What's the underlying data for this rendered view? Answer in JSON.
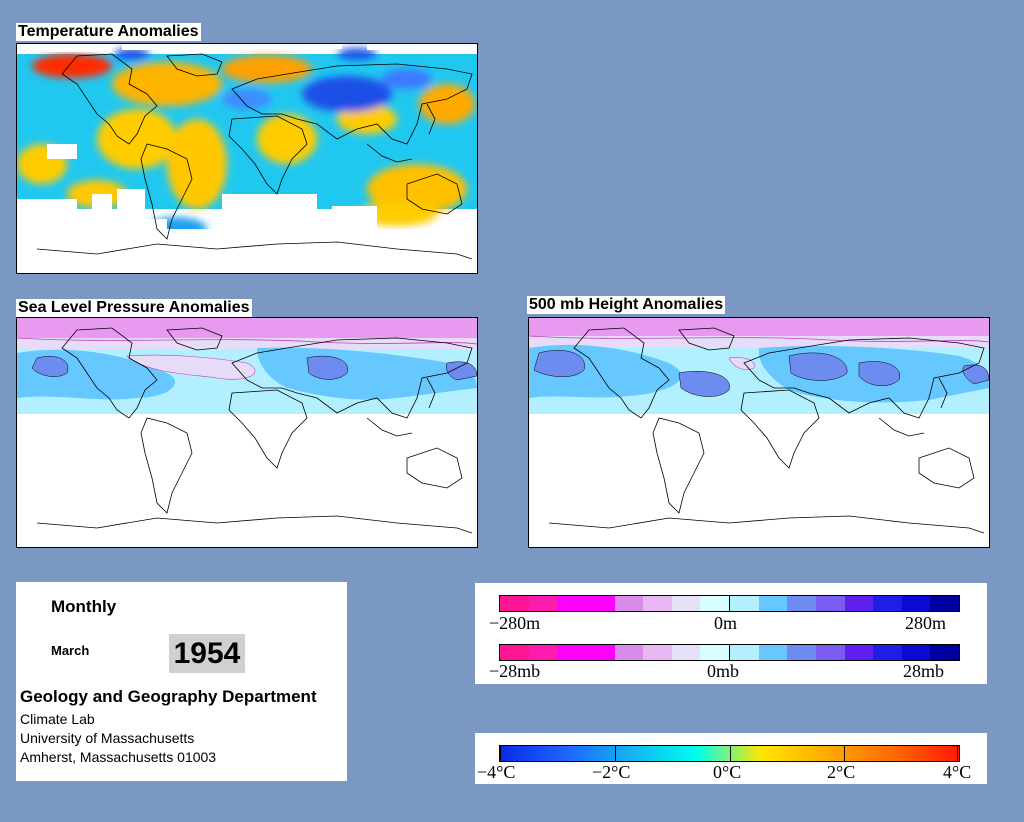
{
  "maps": {
    "temperature": {
      "title": "Temperature Anomalies"
    },
    "slp": {
      "title": "Sea Level Pressure Anomalies"
    },
    "height500": {
      "title": "500 mb Height Anomalies"
    }
  },
  "info": {
    "period": "Monthly",
    "month": "March",
    "year": "1954",
    "department": "Geology and Geography Department",
    "address_lines": [
      "Climate Lab",
      "University of Massachusetts",
      "Amherst, Massachusetts 01003"
    ]
  },
  "legends": {
    "height": {
      "ticks": [
        "−280m",
        "0m",
        "280m"
      ],
      "colors": [
        "#ff1493",
        "#ff1ab0",
        "#ff00ff",
        "#ff00ff",
        "#d98ae8",
        "#e8b6f0",
        "#e6e0f8",
        "#d8ffff",
        "#b3f0ff",
        "#66c8ff",
        "#6e8cf0",
        "#7a5cf0",
        "#6020f0",
        "#1e1ee6",
        "#0a0ad2",
        "#0000a0"
      ]
    },
    "pressure": {
      "ticks": [
        "−28mb",
        "0mb",
        "28mb"
      ],
      "colors": [
        "#ff1493",
        "#ff1ab0",
        "#ff00ff",
        "#ff00ff",
        "#d98ae8",
        "#e8b6f0",
        "#e6e0f8",
        "#d8ffff",
        "#b3f0ff",
        "#66c8ff",
        "#6e8cf0",
        "#7a5cf0",
        "#6020f0",
        "#1e1ee6",
        "#0a0ad2",
        "#0000a0"
      ]
    },
    "temperature": {
      "ticks": [
        "−4°C",
        "−2°C",
        "0°C",
        "2°C",
        "4°C"
      ],
      "gradient": [
        "#0a2ae6",
        "#1e64ff",
        "#14b4f0",
        "#00ffee",
        "#ffe600",
        "#ffaa00",
        "#ff6a00",
        "#ff1a00"
      ]
    }
  }
}
